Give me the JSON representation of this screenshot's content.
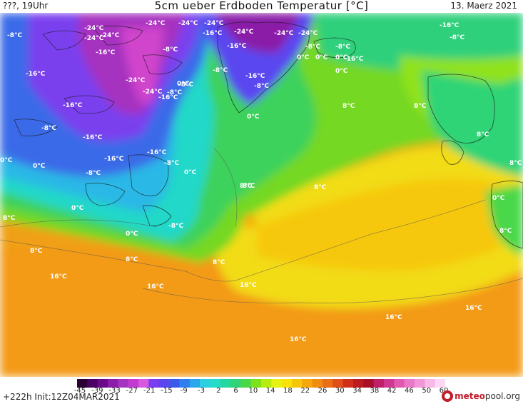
{
  "header": {
    "left": "???, 19Uhr",
    "title": "5cm ueber Erdboden Temperatur [°C]",
    "right": "13. Maerz 2021"
  },
  "footer": {
    "init": "+222h  Init:12Z04MAR2021",
    "brand_prefix": "meteo",
    "brand_suffix": "pool.org"
  },
  "colorbar": {
    "ticks": [
      "-45",
      "-39",
      "-33",
      "-27",
      "-21",
      "-15",
      "-9",
      "-3",
      "2",
      "6",
      "10",
      "14",
      "18",
      "22",
      "26",
      "30",
      "34",
      "38",
      "42",
      "46",
      "50",
      "60"
    ],
    "colors": [
      "#2b0033",
      "#4b0063",
      "#6a0a8a",
      "#8a1ea8",
      "#a632c0",
      "#c23ad2",
      "#d659e0",
      "#7a3df0",
      "#5a46f0",
      "#3a5ae8",
      "#2f7ef0",
      "#2aa6ea",
      "#2ccfe0",
      "#26dcc8",
      "#22d8a0",
      "#2ed476",
      "#48d84a",
      "#7ee21a",
      "#b6ec10",
      "#e6f214",
      "#f8e20a",
      "#f6c60a",
      "#f4a80c",
      "#f08c12",
      "#ea7018",
      "#e05018",
      "#d0301a",
      "#bc1c20",
      "#a8102a",
      "#c0206a",
      "#d03890",
      "#e058b0",
      "#ea78c8",
      "#f296d8",
      "#f8b8e8",
      "#fcd8f4"
    ]
  },
  "map_labels": [
    {
      "t": "-8°C"
    },
    {
      "t": "-24°C"
    },
    {
      "t": "-24°C"
    },
    {
      "t": "-24°C"
    },
    {
      "t": "-24°C"
    },
    {
      "t": "-24°C"
    },
    {
      "t": "-24°C"
    },
    {
      "t": "-16°C"
    },
    {
      "t": "-24°C"
    },
    {
      "t": "-24°C"
    },
    {
      "t": "-24°C"
    },
    {
      "t": "-16°C"
    },
    {
      "t": "-16°C"
    },
    {
      "t": "-8°C"
    },
    {
      "t": "-8°C"
    },
    {
      "t": "-16°C"
    },
    {
      "t": "-8°C"
    },
    {
      "t": "-24°C"
    },
    {
      "t": "-24°C"
    },
    {
      "t": "-16°C"
    },
    {
      "t": "0°C"
    },
    {
      "t": "-8°C"
    },
    {
      "t": "-16°C"
    },
    {
      "t": "-16°C"
    },
    {
      "t": "-8°C"
    },
    {
      "t": "-16°C"
    },
    {
      "t": "-8°C"
    },
    {
      "t": "-16°C"
    },
    {
      "t": "-8°C"
    },
    {
      "t": "-16°C"
    },
    {
      "t": "0°C"
    },
    {
      "t": "8°C"
    },
    {
      "t": "-16°C"
    },
    {
      "t": "-8°C"
    },
    {
      "t": "0°C"
    },
    {
      "t": "0°C"
    },
    {
      "t": "0°C"
    },
    {
      "t": "-16°C"
    },
    {
      "t": "-8°C"
    },
    {
      "t": "0°C"
    },
    {
      "t": "-8°C"
    },
    {
      "t": "-8°C"
    },
    {
      "t": "0°C"
    },
    {
      "t": "0°C"
    },
    {
      "t": "8°C"
    },
    {
      "t": "8°C"
    },
    {
      "t": "0°C"
    },
    {
      "t": "8°C"
    },
    {
      "t": "8°C"
    },
    {
      "t": "0°C"
    },
    {
      "t": "0°C"
    },
    {
      "t": "8°C"
    },
    {
      "t": "8°C"
    },
    {
      "t": "8°C"
    },
    {
      "t": "8°C"
    },
    {
      "t": "8°C"
    },
    {
      "t": "16°C"
    },
    {
      "t": "16°C"
    },
    {
      "t": "16°C"
    },
    {
      "t": "16°C"
    },
    {
      "t": "16°C"
    },
    {
      "t": "16°C"
    },
    {
      "t": "8°C"
    },
    {
      "t": "8°C"
    },
    {
      "t": "0°C"
    },
    {
      "t": "-8°C"
    }
  ]
}
